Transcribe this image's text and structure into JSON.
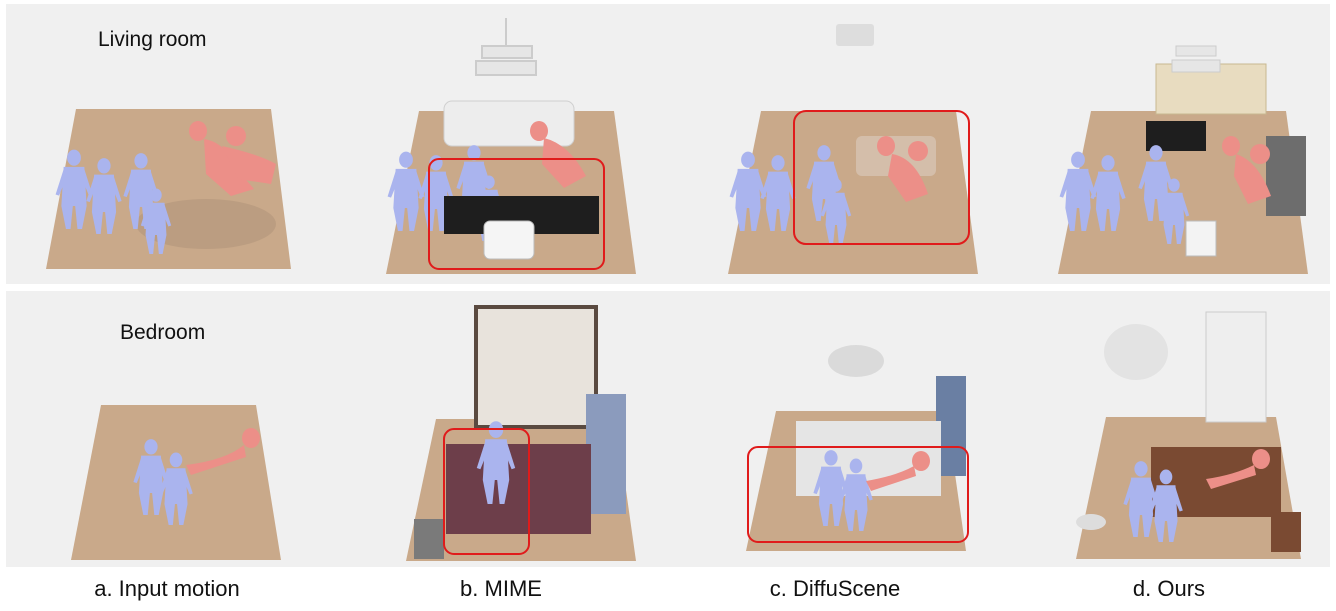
{
  "rows": [
    {
      "label": "Living room"
    },
    {
      "label": "Bedroom"
    }
  ],
  "captions": [
    "a. Input motion",
    "b. MIME",
    "c. DiffuScene",
    "d. Ours"
  ],
  "colors": {
    "floor": "#c9a98a",
    "human_blue": "#aab4ee",
    "human_red": "#ec8f88",
    "highlight": "#e01b1b",
    "panel": "#f0f0f0"
  }
}
